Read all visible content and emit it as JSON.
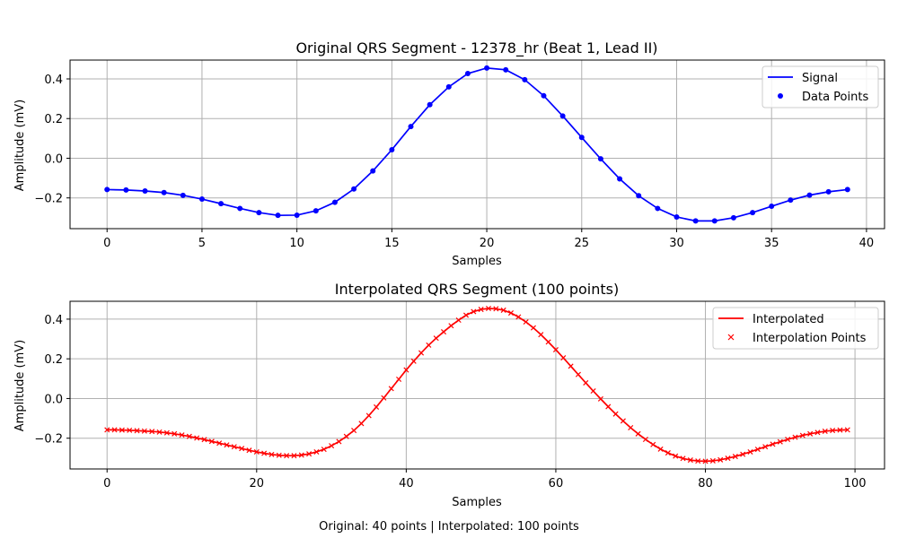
{
  "figure": {
    "caption": "Original: 40 points | Interpolated: 100 points"
  },
  "colors": {
    "original": "#0000ff",
    "interpolated": "#ff0000",
    "grid": "#b0b0b0",
    "axes": "#000000"
  },
  "chart_data": [
    {
      "type": "line",
      "title": "Original QRS Segment - 12378_hr (Beat 1, Lead II)",
      "xlabel": "Samples",
      "ylabel": "Amplitude (mV)",
      "xlim": [
        -1.95,
        40.95
      ],
      "ylim": [
        -0.355,
        0.495
      ],
      "xticks": [
        0,
        5,
        10,
        15,
        20,
        25,
        30,
        35,
        40
      ],
      "yticks": [
        -0.2,
        0.0,
        0.2,
        0.4
      ],
      "grid": true,
      "legend_position": "top-right",
      "legend": [
        {
          "label": "Signal",
          "style": "line",
          "color": "#0000ff"
        },
        {
          "label": "Data Points",
          "style": "dot",
          "color": "#0000ff"
        }
      ],
      "series": [
        {
          "name": "Signal",
          "color": "#0000ff",
          "marker": "dot",
          "x": [
            0,
            1,
            2,
            3,
            4,
            5,
            6,
            7,
            8,
            9,
            10,
            11,
            12,
            13,
            14,
            15,
            16,
            17,
            18,
            19,
            20,
            21,
            22,
            23,
            24,
            25,
            26,
            27,
            28,
            29,
            30,
            31,
            32,
            33,
            34,
            35,
            36,
            37,
            38,
            39
          ],
          "y": [
            -0.158,
            -0.16,
            -0.165,
            -0.173,
            -0.187,
            -0.206,
            -0.229,
            -0.253,
            -0.274,
            -0.288,
            -0.287,
            -0.265,
            -0.222,
            -0.155,
            -0.064,
            0.043,
            0.16,
            0.27,
            0.36,
            0.427,
            0.455,
            0.446,
            0.396,
            0.315,
            0.213,
            0.105,
            -0.003,
            -0.104,
            -0.189,
            -0.253,
            -0.296,
            -0.316,
            -0.316,
            -0.3,
            -0.274,
            -0.242,
            -0.211,
            -0.186,
            -0.169,
            -0.158
          ]
        }
      ]
    },
    {
      "type": "line",
      "title": "Interpolated QRS Segment (100 points)",
      "xlabel": "Samples",
      "ylabel": "Amplitude (mV)",
      "xlim": [
        -4.95,
        103.95
      ],
      "ylim": [
        -0.355,
        0.49
      ],
      "xticks": [
        0,
        20,
        40,
        60,
        80,
        100
      ],
      "yticks": [
        -0.2,
        0.0,
        0.2,
        0.4
      ],
      "grid": true,
      "legend_position": "top-right",
      "legend": [
        {
          "label": "Interpolated",
          "style": "line",
          "color": "#ff0000"
        },
        {
          "label": "Interpolation Points",
          "style": "x",
          "color": "#ff0000"
        }
      ],
      "series": [
        {
          "name": "Interpolated",
          "color": "#ff0000",
          "marker": "x",
          "x": [
            0,
            1,
            2,
            3,
            4,
            5,
            6,
            7,
            8,
            9,
            10,
            11,
            12,
            13,
            14,
            15,
            16,
            17,
            18,
            19,
            20,
            21,
            22,
            23,
            24,
            25,
            26,
            27,
            28,
            29,
            30,
            31,
            32,
            33,
            34,
            35,
            36,
            37,
            38,
            39,
            40,
            41,
            42,
            43,
            44,
            45,
            46,
            47,
            48,
            49,
            50,
            51,
            52,
            53,
            54,
            55,
            56,
            57,
            58,
            59,
            60,
            61,
            62,
            63,
            64,
            65,
            66,
            67,
            68,
            69,
            70,
            71,
            72,
            73,
            74,
            75,
            76,
            77,
            78,
            79,
            80,
            81,
            82,
            83,
            84,
            85,
            86,
            87,
            88,
            89,
            90,
            91,
            92,
            93,
            94,
            95,
            96,
            97,
            98,
            99
          ],
          "y": [
            -0.158,
            -0.158,
            -0.159,
            -0.16,
            -0.162,
            -0.164,
            -0.166,
            -0.169,
            -0.173,
            -0.178,
            -0.184,
            -0.191,
            -0.199,
            -0.207,
            -0.216,
            -0.225,
            -0.234,
            -0.243,
            -0.252,
            -0.261,
            -0.269,
            -0.276,
            -0.282,
            -0.286,
            -0.288,
            -0.288,
            -0.285,
            -0.279,
            -0.269,
            -0.256,
            -0.238,
            -0.217,
            -0.191,
            -0.161,
            -0.126,
            -0.086,
            -0.043,
            0.003,
            0.05,
            0.097,
            0.144,
            0.188,
            0.23,
            0.269,
            0.304,
            0.336,
            0.367,
            0.395,
            0.42,
            0.438,
            0.449,
            0.454,
            0.452,
            0.445,
            0.431,
            0.411,
            0.386,
            0.356,
            0.322,
            0.285,
            0.246,
            0.205,
            0.163,
            0.121,
            0.079,
            0.038,
            -0.002,
            -0.041,
            -0.078,
            -0.113,
            -0.147,
            -0.178,
            -0.206,
            -0.232,
            -0.255,
            -0.274,
            -0.29,
            -0.302,
            -0.31,
            -0.315,
            -0.316,
            -0.314,
            -0.309,
            -0.301,
            -0.292,
            -0.281,
            -0.269,
            -0.256,
            -0.243,
            -0.23,
            -0.218,
            -0.206,
            -0.195,
            -0.186,
            -0.178,
            -0.171,
            -0.165,
            -0.161,
            -0.159,
            -0.158
          ]
        }
      ]
    }
  ]
}
